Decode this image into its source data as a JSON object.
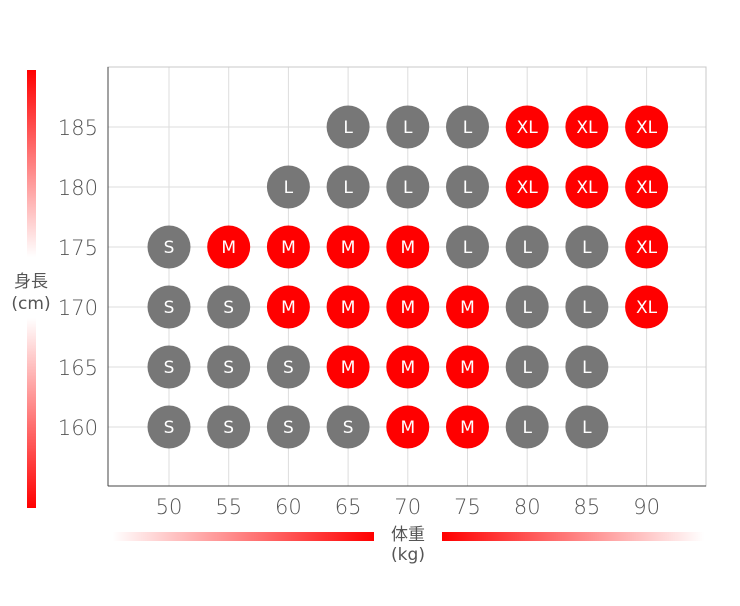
{
  "chart_data": {
    "type": "scatter",
    "title": "",
    "xlabel": "体重",
    "xunit": "(kg)",
    "ylabel": "身長",
    "yunit": "(cm)",
    "x_ticks": [
      50,
      55,
      60,
      65,
      70,
      75,
      80,
      85,
      90
    ],
    "y_ticks": [
      160,
      165,
      170,
      175,
      180,
      185
    ],
    "xlim": [
      45,
      95
    ],
    "ylim": [
      155,
      190
    ],
    "grid": true,
    "colors": {
      "S": "#777777",
      "M": "#ff0000",
      "L": "#777777",
      "XL": "#ff0000"
    },
    "points": [
      {
        "x": 65,
        "y": 185,
        "size": "L"
      },
      {
        "x": 70,
        "y": 185,
        "size": "L"
      },
      {
        "x": 75,
        "y": 185,
        "size": "L"
      },
      {
        "x": 80,
        "y": 185,
        "size": "XL"
      },
      {
        "x": 85,
        "y": 185,
        "size": "XL"
      },
      {
        "x": 90,
        "y": 185,
        "size": "XL"
      },
      {
        "x": 60,
        "y": 180,
        "size": "L"
      },
      {
        "x": 65,
        "y": 180,
        "size": "L"
      },
      {
        "x": 70,
        "y": 180,
        "size": "L"
      },
      {
        "x": 75,
        "y": 180,
        "size": "L"
      },
      {
        "x": 80,
        "y": 180,
        "size": "XL"
      },
      {
        "x": 85,
        "y": 180,
        "size": "XL"
      },
      {
        "x": 90,
        "y": 180,
        "size": "XL"
      },
      {
        "x": 50,
        "y": 175,
        "size": "S"
      },
      {
        "x": 55,
        "y": 175,
        "size": "M"
      },
      {
        "x": 60,
        "y": 175,
        "size": "M"
      },
      {
        "x": 65,
        "y": 175,
        "size": "M"
      },
      {
        "x": 70,
        "y": 175,
        "size": "M"
      },
      {
        "x": 75,
        "y": 175,
        "size": "L"
      },
      {
        "x": 80,
        "y": 175,
        "size": "L"
      },
      {
        "x": 85,
        "y": 175,
        "size": "L"
      },
      {
        "x": 90,
        "y": 175,
        "size": "XL"
      },
      {
        "x": 50,
        "y": 170,
        "size": "S"
      },
      {
        "x": 55,
        "y": 170,
        "size": "S"
      },
      {
        "x": 60,
        "y": 170,
        "size": "M"
      },
      {
        "x": 65,
        "y": 170,
        "size": "M"
      },
      {
        "x": 70,
        "y": 170,
        "size": "M"
      },
      {
        "x": 75,
        "y": 170,
        "size": "M"
      },
      {
        "x": 80,
        "y": 170,
        "size": "L"
      },
      {
        "x": 85,
        "y": 170,
        "size": "L"
      },
      {
        "x": 90,
        "y": 170,
        "size": "XL"
      },
      {
        "x": 50,
        "y": 165,
        "size": "S"
      },
      {
        "x": 55,
        "y": 165,
        "size": "S"
      },
      {
        "x": 60,
        "y": 165,
        "size": "S"
      },
      {
        "x": 65,
        "y": 165,
        "size": "M"
      },
      {
        "x": 70,
        "y": 165,
        "size": "M"
      },
      {
        "x": 75,
        "y": 165,
        "size": "M"
      },
      {
        "x": 80,
        "y": 165,
        "size": "L"
      },
      {
        "x": 85,
        "y": 165,
        "size": "L"
      },
      {
        "x": 50,
        "y": 160,
        "size": "S"
      },
      {
        "x": 55,
        "y": 160,
        "size": "S"
      },
      {
        "x": 60,
        "y": 160,
        "size": "S"
      },
      {
        "x": 65,
        "y": 160,
        "size": "S"
      },
      {
        "x": 70,
        "y": 160,
        "size": "M"
      },
      {
        "x": 75,
        "y": 160,
        "size": "M"
      },
      {
        "x": 80,
        "y": 160,
        "size": "L"
      },
      {
        "x": 85,
        "y": 160,
        "size": "L"
      }
    ]
  }
}
